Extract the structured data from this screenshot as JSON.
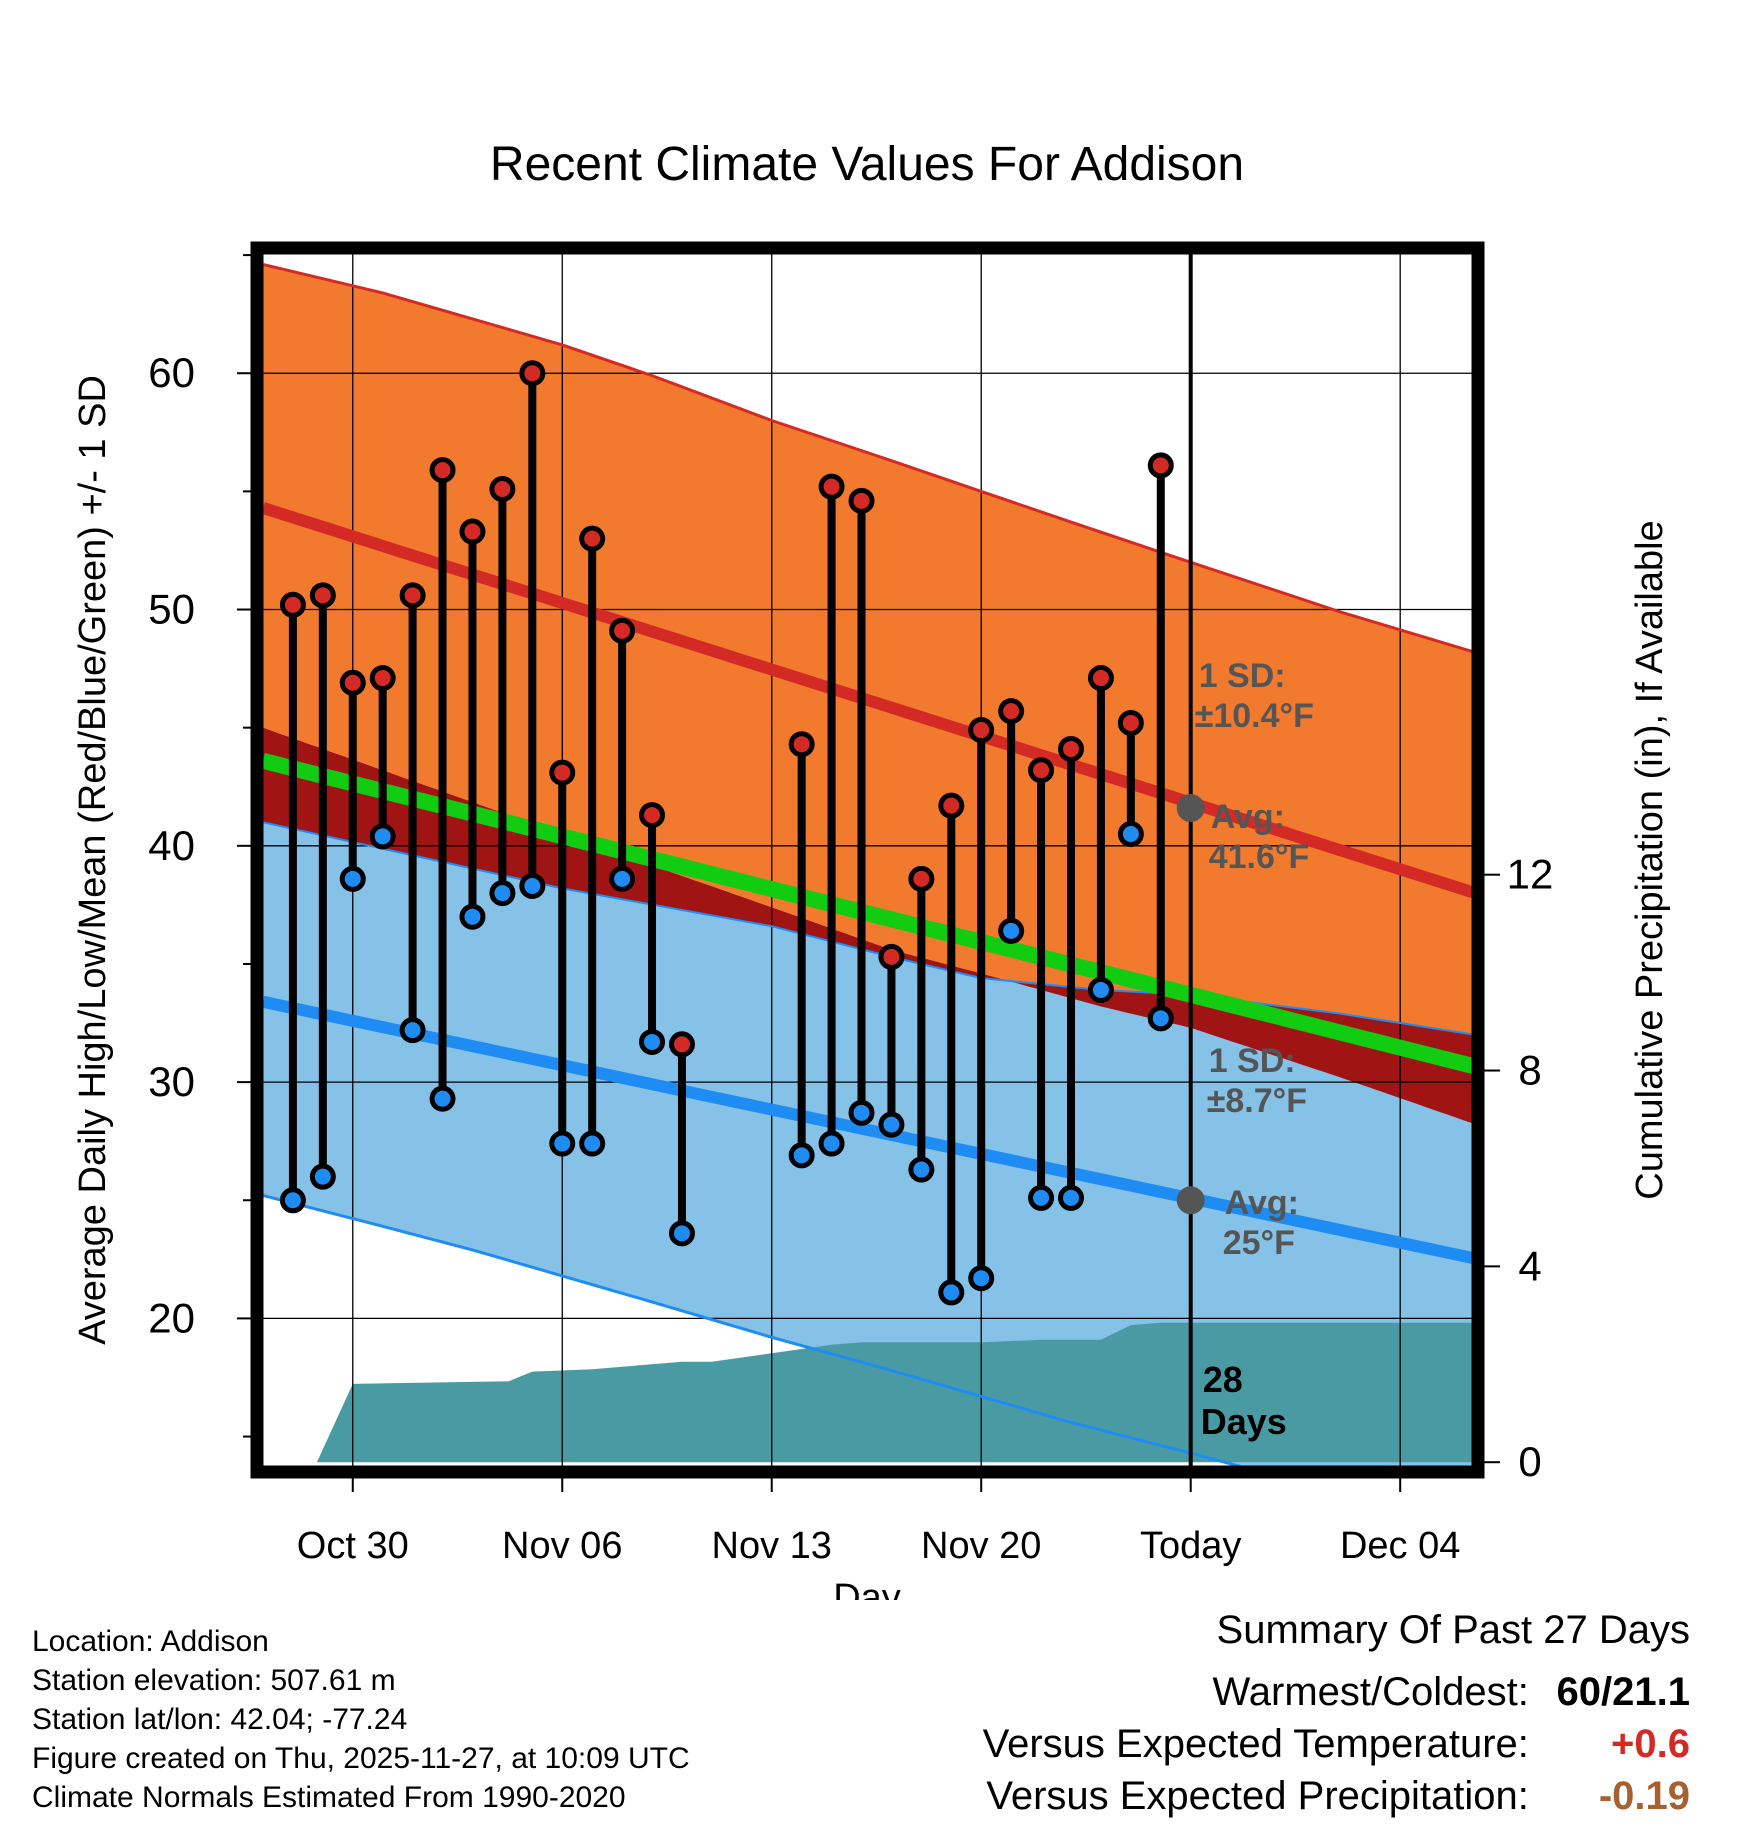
{
  "chart_data": {
    "type": "line",
    "title": "Recent Climate Values For Addison",
    "xlabel": "Day",
    "ylabel": "Average Daily High/Low/Mean (Red/Blue/Green) +/- 1 SD",
    "y2label": "Cumulative Precipitation (in), If Available",
    "x_tick_labels": [
      "Oct 30",
      "Nov 06",
      "Nov 13",
      "Nov 20",
      "Today",
      "Dec 04"
    ],
    "x_tick_days": [
      0,
      7,
      14,
      21,
      28,
      35
    ],
    "xlim": [
      -3.2,
      37.6
    ],
    "ylim": [
      13.5,
      65.3
    ],
    "y_ticks": [
      20,
      30,
      40,
      50,
      60
    ],
    "y2lim": [
      -0.2,
      24.8
    ],
    "y2_ticks": [
      0,
      4,
      8,
      12
    ],
    "today_day": 28,
    "normals": {
      "high_avg": {
        "x": [
          -3,
          38
        ],
        "y": [
          54.3,
          37.8
        ]
      },
      "high_sd_upper": {
        "x": [
          -3,
          1,
          4,
          7,
          10,
          14,
          18,
          21,
          24,
          28,
          33,
          38
        ],
        "y": [
          64.6,
          63.4,
          62.3,
          61.2,
          59.9,
          58.0,
          56.3,
          55.0,
          53.7,
          52.0,
          49.9,
          48.0
        ]
      },
      "high_sd_lower": {
        "x": [
          -3,
          7,
          14,
          18,
          21,
          25,
          28,
          33,
          38
        ],
        "y": [
          45.0,
          40.5,
          37.4,
          35.6,
          34.6,
          33.2,
          32.3,
          30.2,
          28.0
        ]
      },
      "mean_avg": {
        "x": [
          -3,
          38
        ],
        "y": [
          43.6,
          30.5
        ]
      },
      "low_avg": {
        "x": [
          -3,
          38
        ],
        "y": [
          33.4,
          22.4
        ]
      },
      "low_sd_upper": {
        "x": [
          -3,
          7,
          14,
          18,
          21,
          25,
          28,
          33,
          38
        ],
        "y": [
          41.0,
          38.2,
          36.6,
          35.3,
          34.4,
          33.9,
          33.7,
          32.9,
          31.9
        ]
      },
      "low_sd_lower": {
        "x": [
          -3,
          1,
          4,
          7,
          10,
          14,
          18,
          21,
          24,
          28,
          33,
          38
        ],
        "y": [
          25.2,
          23.9,
          22.9,
          21.8,
          20.7,
          19.2,
          17.8,
          16.7,
          15.6,
          14.3,
          12.6,
          11.0
        ]
      }
    },
    "daily": {
      "day": [
        -2,
        -1,
        0,
        1,
        2,
        3,
        4,
        5,
        6,
        7,
        8,
        9,
        10,
        11,
        15,
        16,
        17,
        18,
        19,
        20,
        21,
        22,
        23,
        24,
        25,
        26,
        27
      ],
      "high": [
        50.2,
        50.6,
        46.9,
        47.1,
        50.6,
        55.9,
        53.3,
        55.1,
        60.0,
        43.1,
        53.0,
        49.1,
        41.3,
        31.6,
        44.3,
        55.2,
        54.6,
        35.3,
        38.6,
        41.7,
        44.9,
        45.7,
        43.2,
        44.1,
        47.1,
        45.2,
        56.1
      ],
      "low": [
        25.0,
        26.0,
        38.6,
        40.4,
        32.2,
        29.3,
        37.0,
        38.0,
        38.3,
        27.4,
        27.4,
        38.6,
        31.7,
        23.6,
        26.9,
        27.4,
        28.7,
        28.2,
        26.3,
        21.1,
        21.7,
        36.4,
        25.1,
        25.1,
        33.9,
        40.5,
        32.7
      ]
    },
    "precip_cumulative": {
      "x": [
        -1.2,
        0,
        5,
        5.2,
        6,
        8,
        9,
        11,
        12,
        16,
        17,
        18,
        21,
        23,
        25,
        26,
        27,
        28,
        38
      ],
      "y": [
        0,
        1.6,
        1.65,
        1.65,
        1.85,
        1.9,
        1.95,
        2.05,
        2.05,
        2.4,
        2.45,
        2.45,
        2.45,
        2.5,
        2.5,
        2.8,
        2.85,
        2.85,
        2.85
      ]
    },
    "annotations": {
      "high_sd_line1": "1 SD:",
      "high_sd_line2": "±10.4°F",
      "high_avg_line1": "Avg:",
      "high_avg_line2": "41.6°F",
      "high_today_value": 41.6,
      "low_sd_line1": "1 SD:",
      "low_sd_line2": "±8.7°F",
      "low_avg_line1": "Avg:",
      "low_avg_line2": "25°F",
      "low_today_value": 25,
      "days_line1": "28",
      "days_line2": "Days"
    },
    "colors": {
      "high_band": "#f27a2e",
      "high_line": "#d42a25",
      "low_band": "#86c1e8",
      "low_line": "#1e8cf2",
      "mean_line": "#11cc11",
      "overlap": "#a01414",
      "precip": "#4a9aa4",
      "high_dot": "#d42a25",
      "low_dot": "#1e8cf2",
      "annotation": "#555555"
    }
  },
  "info": {
    "location": "Location: Addison",
    "elevation": "Station elevation: 507.61 m",
    "latlon": "Station lat/lon: 42.04; -77.24",
    "created": "Figure created on Thu, 2025-11-27, at 10:09 UTC",
    "normals": "Climate Normals Estimated From 1990-2020"
  },
  "summary": {
    "title": "Summary Of Past 27 Days",
    "warm_cold_label": "Warmest/Coldest:",
    "warm_cold_value": "60/21.1",
    "temp_label": "Versus Expected Temperature:",
    "temp_value": "+0.6",
    "temp_color": "#d42a25",
    "precip_label": "Versus Expected Precipitation:",
    "precip_value": "-0.19",
    "precip_color": "#a8602e"
  }
}
